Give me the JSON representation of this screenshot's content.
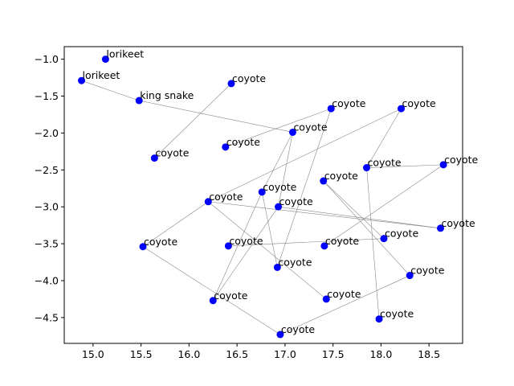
{
  "chart_data": {
    "type": "scatter",
    "title": "",
    "xlabel": "",
    "ylabel": "",
    "xlim": [
      14.7,
      18.85
    ],
    "ylim": [
      -4.85,
      -0.83
    ],
    "grid": false,
    "xticks": [
      15.0,
      15.5,
      16.0,
      16.5,
      17.0,
      17.5,
      18.0,
      18.5
    ],
    "yticks": [
      -1.0,
      -1.5,
      -2.0,
      -2.5,
      -3.0,
      -3.5,
      -4.0,
      -4.5
    ],
    "xtick_labels": [
      "15.0",
      "15.5",
      "16.0",
      "16.5",
      "17.0",
      "17.5",
      "18.0",
      "18.5"
    ],
    "ytick_labels": [
      "−1.0",
      "−1.5",
      "−2.0",
      "−2.5",
      "−3.0",
      "−3.5",
      "−4.0",
      "−4.5"
    ],
    "marker_color": "#0000ff",
    "edge_color": "#888888",
    "points": [
      {
        "x": 15.13,
        "y": -1.0,
        "label": "lorikeet"
      },
      {
        "x": 14.88,
        "y": -1.29,
        "label": "lorikeet"
      },
      {
        "x": 15.48,
        "y": -1.56,
        "label": "king snake"
      },
      {
        "x": 16.44,
        "y": -1.33,
        "label": "coyote"
      },
      {
        "x": 17.48,
        "y": -1.67,
        "label": "coyote"
      },
      {
        "x": 18.21,
        "y": -1.67,
        "label": "coyote"
      },
      {
        "x": 17.08,
        "y": -1.99,
        "label": "coyote"
      },
      {
        "x": 16.38,
        "y": -2.19,
        "label": "coyote"
      },
      {
        "x": 15.64,
        "y": -2.34,
        "label": "coyote"
      },
      {
        "x": 17.85,
        "y": -2.47,
        "label": "coyote"
      },
      {
        "x": 18.65,
        "y": -2.43,
        "label": "coyote"
      },
      {
        "x": 17.4,
        "y": -2.65,
        "label": "coyote"
      },
      {
        "x": 16.76,
        "y": -2.8,
        "label": "coyote"
      },
      {
        "x": 16.2,
        "y": -2.93,
        "label": "coyote"
      },
      {
        "x": 16.93,
        "y": -3.0,
        "label": "coyote"
      },
      {
        "x": 18.62,
        "y": -3.29,
        "label": "coyote"
      },
      {
        "x": 18.03,
        "y": -3.43,
        "label": "coyote"
      },
      {
        "x": 15.52,
        "y": -3.54,
        "label": "coyote"
      },
      {
        "x": 16.41,
        "y": -3.53,
        "label": "coyote"
      },
      {
        "x": 17.41,
        "y": -3.53,
        "label": "coyote"
      },
      {
        "x": 16.92,
        "y": -3.82,
        "label": "coyote"
      },
      {
        "x": 18.3,
        "y": -3.93,
        "label": "coyote"
      },
      {
        "x": 16.25,
        "y": -4.27,
        "label": "coyote"
      },
      {
        "x": 17.43,
        "y": -4.25,
        "label": "coyote"
      },
      {
        "x": 17.98,
        "y": -4.52,
        "label": "coyote"
      },
      {
        "x": 16.95,
        "y": -4.73,
        "label": "coyote"
      }
    ],
    "edges": [
      [
        1,
        2
      ],
      [
        2,
        6
      ],
      [
        3,
        8
      ],
      [
        4,
        7
      ],
      [
        5,
        9
      ],
      [
        5,
        13
      ],
      [
        6,
        12
      ],
      [
        6,
        14
      ],
      [
        9,
        10
      ],
      [
        9,
        24
      ],
      [
        10,
        19
      ],
      [
        4,
        20
      ],
      [
        12,
        20
      ],
      [
        12,
        22
      ],
      [
        14,
        22
      ],
      [
        11,
        16
      ],
      [
        11,
        21
      ],
      [
        13,
        15
      ],
      [
        13,
        23
      ],
      [
        14,
        15
      ],
      [
        17,
        25
      ],
      [
        17,
        13
      ],
      [
        18,
        16
      ],
      [
        25,
        21
      ]
    ]
  }
}
